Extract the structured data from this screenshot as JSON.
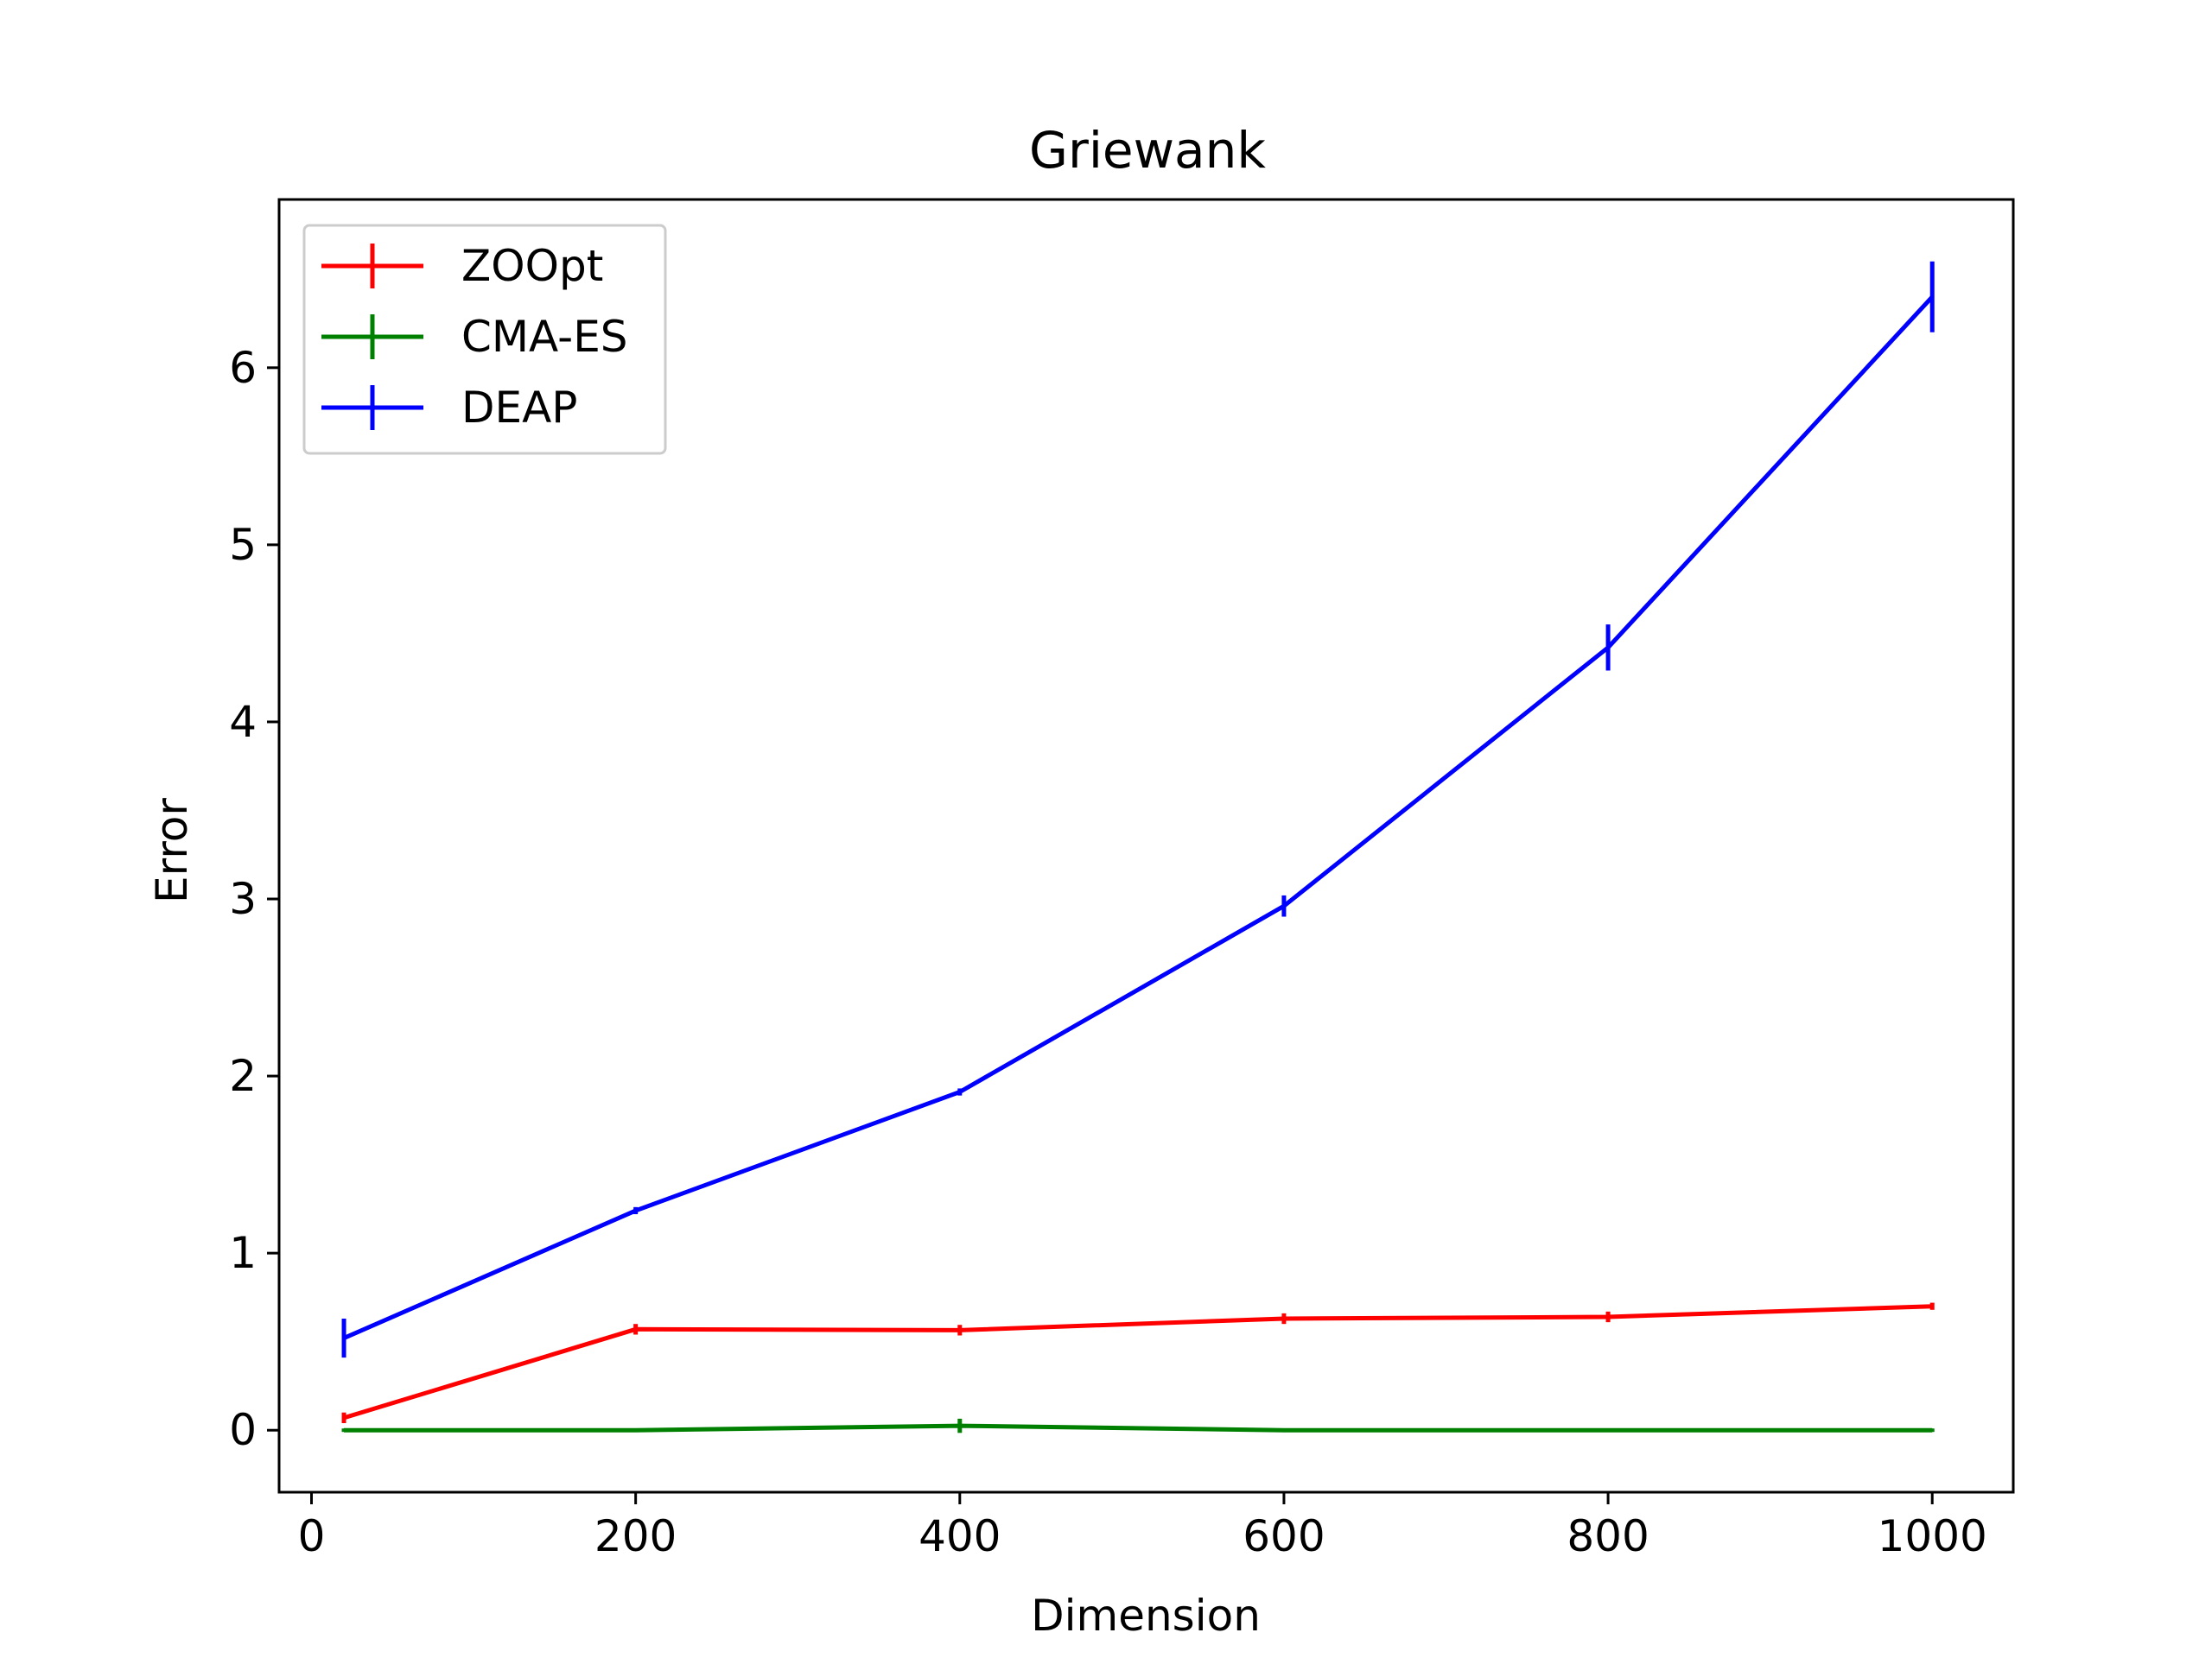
{
  "chart_data": {
    "type": "line",
    "title": "Griewank",
    "xlabel": "Dimension",
    "ylabel": "Error",
    "xlim": [
      -20,
      1050
    ],
    "ylim": [
      -0.35,
      6.95
    ],
    "xticks": [
      0,
      200,
      400,
      600,
      800,
      1000
    ],
    "yticks": [
      0,
      1,
      2,
      3,
      4,
      5,
      6
    ],
    "grid": false,
    "legend_position": "upper-left",
    "series": [
      {
        "name": "ZOOpt",
        "color": "#ff0000",
        "x": [
          20,
          200,
          400,
          600,
          800,
          1000
        ],
        "y": [
          0.07,
          0.57,
          0.565,
          0.63,
          0.64,
          0.7
        ],
        "err": [
          0.03,
          0.03,
          0.03,
          0.03,
          0.03,
          0.02
        ]
      },
      {
        "name": "CMA-ES",
        "color": "#008000",
        "x": [
          20,
          200,
          400,
          600,
          800,
          1000
        ],
        "y": [
          0.0,
          0.0,
          0.025,
          0.0,
          0.0,
          0.0
        ],
        "err": [
          0.0,
          0.0,
          0.04,
          0.0,
          0.0,
          0.0
        ]
      },
      {
        "name": "DEAP",
        "color": "#0000ff",
        "x": [
          20,
          200,
          400,
          600,
          800,
          1000
        ],
        "y": [
          0.52,
          1.24,
          1.91,
          2.96,
          4.42,
          6.4
        ],
        "err": [
          0.11,
          0.02,
          0.02,
          0.06,
          0.13,
          0.2
        ]
      }
    ]
  }
}
